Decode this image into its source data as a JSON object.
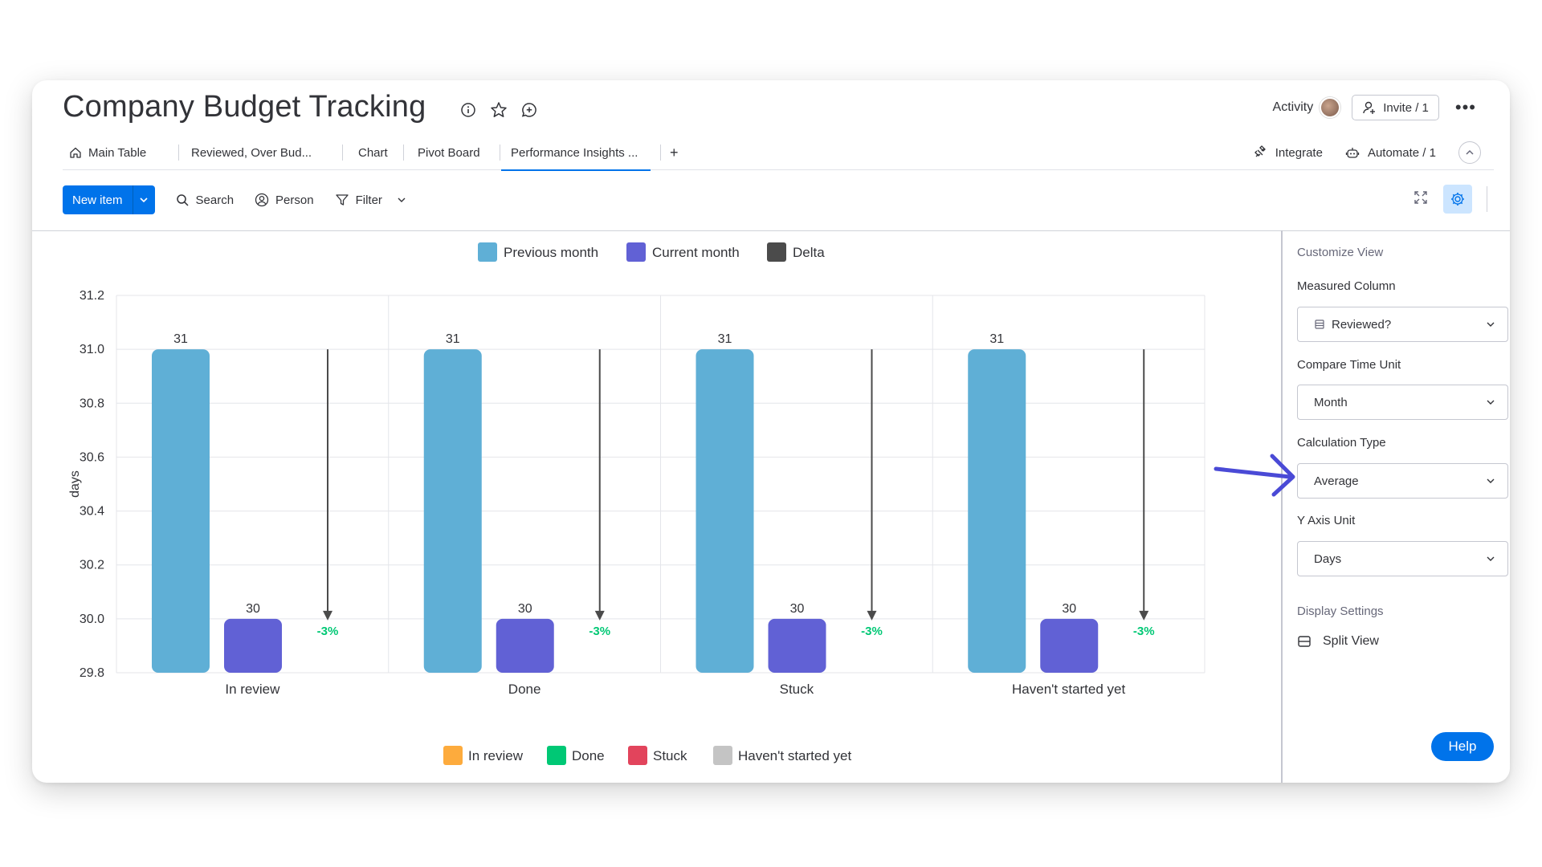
{
  "board": {
    "title": "Company Budget Tracking"
  },
  "header": {
    "activity_label": "Activity",
    "invite_label": "Invite / 1",
    "more_label": "•••"
  },
  "tabs": [
    {
      "label": "Main Table"
    },
    {
      "label": "Reviewed, Over Bud..."
    },
    {
      "label": "Chart"
    },
    {
      "label": "Pivot Board"
    },
    {
      "label": "Performance Insights ..."
    },
    {
      "label": "+"
    }
  ],
  "active_tab": "Performance Insights ...",
  "tabs_right": {
    "integrate_label": "Integrate",
    "automate_label": "Automate / 1"
  },
  "toolbar": {
    "new_item_label": "New item",
    "search_label": "Search",
    "person_label": "Person",
    "filter_label": "Filter"
  },
  "panel": {
    "customize_view": "Customize View",
    "measured_column_label": "Measured Column",
    "measured_column_value": "Reviewed?",
    "compare_time_unit_label": "Compare Time Unit",
    "compare_time_unit_value": "Month",
    "calculation_type_label": "Calculation Type",
    "calculation_type_value": "Average",
    "y_axis_unit_label": "Y Axis Unit",
    "y_axis_unit_value": "Days",
    "display_settings": "Display Settings",
    "split_view_label": "Split View"
  },
  "help_label": "Help",
  "colors": {
    "accent": "#0073ea",
    "previous_month": "#5fafd6",
    "current_month": "#6161d5",
    "delta": "#4b4b4b",
    "delta_text": "#00c875",
    "annotation_arrow": "#4a4ad6"
  },
  "chart_data": {
    "type": "bar",
    "ylabel": "days",
    "ylim": [
      29.8,
      31.2
    ],
    "yticks": [
      "31.2",
      "31.0",
      "30.8",
      "30.6",
      "30.4",
      "30.2",
      "30.0",
      "29.8"
    ],
    "categories": [
      "In review",
      "Done",
      "Stuck",
      "Haven't started yet"
    ],
    "series": [
      {
        "name": "Previous month",
        "values": [
          31,
          31,
          31,
          31
        ],
        "color": "#5fafd6"
      },
      {
        "name": "Current month",
        "values": [
          30,
          30,
          30,
          30
        ],
        "color": "#6161d5"
      }
    ],
    "delta": {
      "name": "Delta",
      "color": "#4b4b4b",
      "labels": [
        "-3%",
        "-3%",
        "-3%",
        "-3%"
      ]
    },
    "legend_top": [
      "Previous month",
      "Current month",
      "Delta"
    ],
    "legend_bottom": [
      {
        "name": "In review",
        "color": "#fdab3d"
      },
      {
        "name": "Done",
        "color": "#00c875"
      },
      {
        "name": "Stuck",
        "color": "#e2445c"
      },
      {
        "name": "Haven't started yet",
        "color": "#c4c4c4"
      }
    ],
    "grid": true
  }
}
